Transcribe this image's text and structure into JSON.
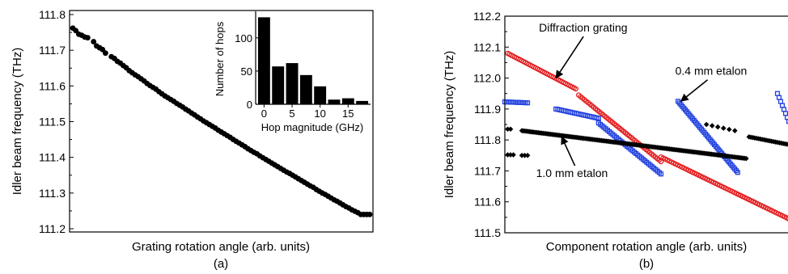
{
  "chart_data": [
    {
      "id": "a",
      "type": "scatter",
      "panel_label": "(a)",
      "title": "",
      "xlabel": "Grating rotation angle (arb. units)",
      "ylabel": "Idler beam frequency (THz)",
      "xlim": [
        0,
        100
      ],
      "ylim": [
        111.2,
        111.8
      ],
      "yticks": [
        "111.2",
        "111.3",
        "111.4",
        "111.5",
        "111.6",
        "111.7",
        "111.8"
      ],
      "x_tick_labels": "none",
      "grid": false,
      "legend": "none",
      "series": [
        {
          "marker": "filled-circle",
          "color": "#000000",
          "x": [
            0,
            1,
            2,
            3,
            4,
            5,
            7,
            8,
            9,
            10,
            11,
            13,
            14,
            15,
            16,
            17,
            18,
            19,
            20,
            21,
            22,
            23,
            24,
            25,
            26,
            27,
            28,
            29,
            30,
            31,
            32,
            33,
            34,
            35,
            36,
            37,
            38,
            39,
            40,
            41,
            42,
            43,
            44,
            45,
            46,
            47,
            48,
            49,
            50,
            51,
            52,
            53,
            54,
            55,
            56,
            57,
            58,
            59,
            60,
            61,
            62,
            63,
            64,
            65,
            66,
            67,
            68,
            69,
            70,
            71,
            72,
            73,
            74,
            75,
            76,
            77,
            78,
            79,
            80,
            81,
            82,
            83,
            84,
            85,
            86,
            87,
            88,
            89,
            90,
            91,
            92,
            93,
            94,
            95,
            96,
            97,
            98,
            99,
            100
          ],
          "y": [
            111.762,
            111.755,
            111.745,
            111.742,
            111.737,
            111.735,
            111.724,
            111.712,
            111.707,
            111.702,
            111.692,
            111.682,
            111.677,
            111.669,
            111.664,
            111.657,
            111.651,
            111.643,
            111.637,
            111.631,
            111.626,
            111.62,
            111.614,
            111.607,
            111.601,
            111.596,
            111.591,
            111.584,
            111.578,
            111.572,
            111.567,
            111.562,
            111.557,
            111.551,
            111.546,
            111.541,
            111.535,
            111.53,
            111.524,
            111.519,
            111.513,
            111.508,
            111.502,
            111.497,
            111.492,
            111.487,
            111.482,
            111.476,
            111.471,
            111.466,
            111.461,
            111.456,
            111.45,
            111.445,
            111.44,
            111.435,
            111.43,
            111.424,
            111.419,
            111.414,
            111.41,
            111.404,
            111.399,
            111.394,
            111.389,
            111.384,
            111.379,
            111.374,
            111.369,
            111.364,
            111.359,
            111.355,
            111.35,
            111.345,
            111.34,
            111.335,
            111.33,
            111.325,
            111.32,
            111.316,
            111.31,
            111.305,
            111.3,
            111.296,
            111.291,
            111.286,
            111.281,
            111.277,
            111.272,
            111.267,
            111.262,
            111.258,
            111.253,
            111.249,
            111.245,
            111.24,
            111.24,
            111.24,
            111.24
          ]
        }
      ],
      "inset": {
        "type": "bar",
        "xlabel": "Hop magnitude (GHz)",
        "ylabel": "Number of hops",
        "xlim": [
          -1.5,
          19
        ],
        "ylim": [
          0,
          140
        ],
        "xticks": [
          "0",
          "5",
          "10",
          "15"
        ],
        "yticks": [
          "0",
          "50",
          "100"
        ],
        "x": [
          0,
          2.5,
          5,
          7.5,
          10,
          12.5,
          15,
          17.5
        ],
        "values": [
          131,
          57,
          62,
          44,
          27,
          7,
          9,
          5
        ]
      }
    },
    {
      "id": "b",
      "type": "scatter",
      "panel_label": "(b)",
      "title": "",
      "xlabel": "Component rotation angle (arb. units)",
      "ylabel": "Idler beam frequency (THz)",
      "xlim": [
        0,
        100
      ],
      "ylim": [
        111.5,
        112.2
      ],
      "yticks": [
        "111.5",
        "111.6",
        "111.7",
        "111.8",
        "111.9",
        "112.0",
        "112.1",
        "112.2"
      ],
      "x_tick_labels": "none",
      "grid": false,
      "legend": "none",
      "annotations": [
        {
          "text": "Diffraction grating",
          "x": 12,
          "y": 112.15,
          "arrow_to": [
            18,
            112.0
          ]
        },
        {
          "text": "0.4 mm etalon",
          "x": 60,
          "y": 112.01,
          "arrow_to": [
            62,
            111.925
          ]
        },
        {
          "text": "1.0 mm etalon",
          "x": 11,
          "y": 111.68,
          "arrow_to": [
            20,
            111.81
          ]
        }
      ],
      "series": [
        {
          "label": "diffraction-grating",
          "marker": "open-circle",
          "color": "#e41a1c",
          "segments": [
            {
              "x_start": 1,
              "x_end": 25,
              "y_start": 112.08,
              "y_end": 111.965,
              "n": 40
            },
            {
              "x_start": 26,
              "x_end": 55,
              "y_start": 111.945,
              "y_end": 111.73,
              "n": 45
            },
            {
              "x_start": 55,
              "x_end": 100,
              "y_start": 111.745,
              "y_end": 111.545,
              "n": 62
            }
          ]
        },
        {
          "label": "0.4 mm etalon",
          "marker": "open-square",
          "color": "#1f3fdf",
          "segments": [
            {
              "x_start": 0,
              "x_end": 8,
              "y_start": 111.923,
              "y_end": 111.92,
              "n": 14
            },
            {
              "x_start": 18,
              "x_end": 33,
              "y_start": 111.9,
              "y_end": 111.87,
              "n": 24
            },
            {
              "x_start": 33,
              "x_end": 55,
              "y_start": 111.855,
              "y_end": 111.69,
              "n": 36
            },
            {
              "x_start": 61,
              "x_end": 82,
              "y_start": 111.925,
              "y_end": 111.695,
              "n": 42
            },
            {
              "x_start": 96,
              "x_end": 100,
              "y_start": 111.95,
              "y_end": 111.86,
              "n": 8
            }
          ]
        },
        {
          "label": "1.0 mm etalon",
          "marker": "filled-diamond",
          "color": "#000000",
          "segments": [
            {
              "x_start": 1,
              "x_end": 2,
              "y_start": 111.835,
              "y_end": 111.835,
              "n": 2
            },
            {
              "x_start": 1,
              "x_end": 3,
              "y_start": 111.752,
              "y_end": 111.752,
              "n": 3
            },
            {
              "x_start": 6,
              "x_end": 8,
              "y_start": 111.75,
              "y_end": 111.75,
              "n": 3
            },
            {
              "x_start": 6,
              "x_end": 85,
              "y_start": 111.83,
              "y_end": 111.74,
              "n": 150
            },
            {
              "x_start": 71,
              "x_end": 81,
              "y_start": 111.85,
              "y_end": 111.83,
              "n": 6
            },
            {
              "x_start": 86,
              "x_end": 100,
              "y_start": 111.81,
              "y_end": 111.785,
              "n": 22
            }
          ]
        }
      ]
    }
  ]
}
